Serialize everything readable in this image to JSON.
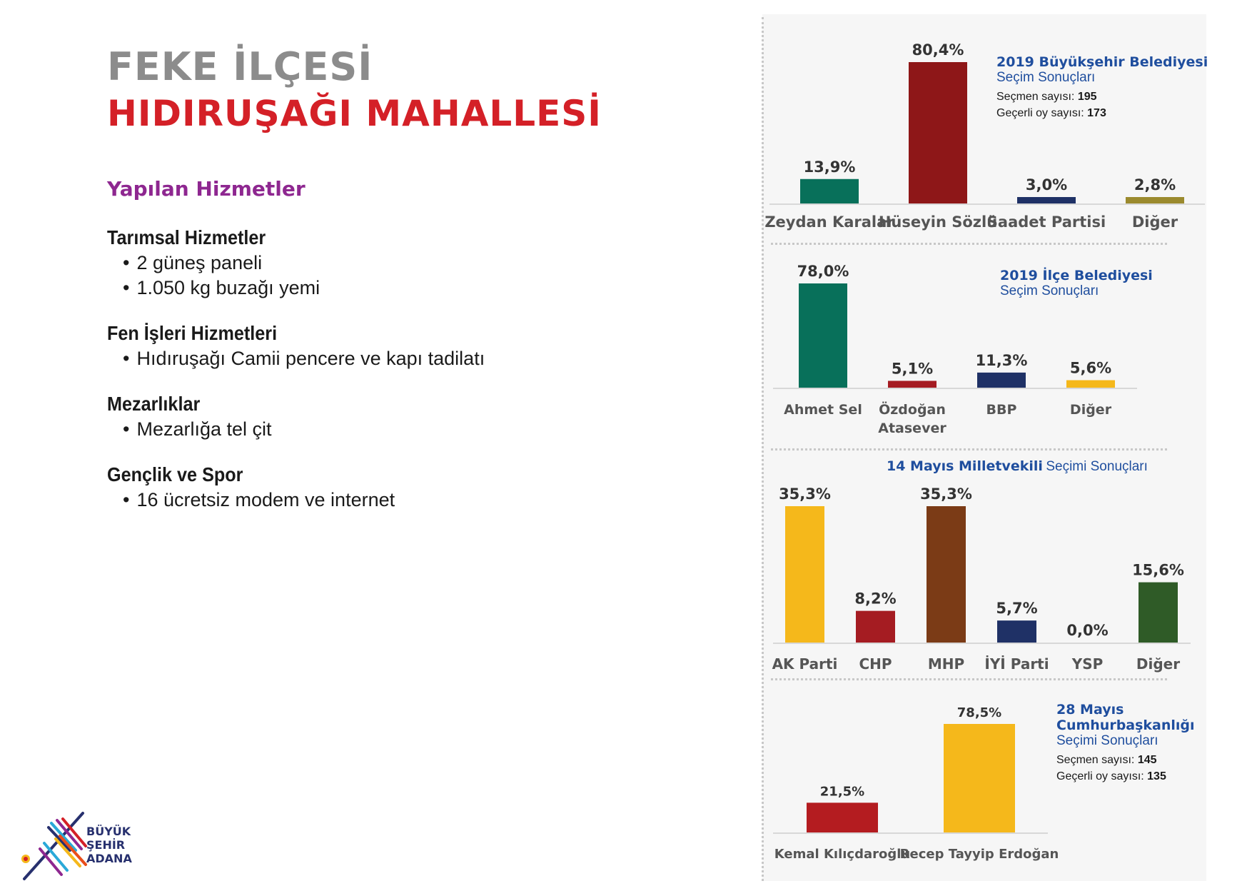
{
  "header": {
    "district": "FEKE İLÇESİ",
    "neighborhood": "HIDIRUŞAĞI MAHALLESİ"
  },
  "services": {
    "title": "Yapılan Hizmetler",
    "categories": [
      {
        "name": "Tarımsal Hizmetler",
        "items": [
          "2 güneş paneli",
          "1.050 kg buzağı yemi"
        ]
      },
      {
        "name": "Fen İşleri Hizmetleri",
        "items": [
          "Hıdıruşağı Camii pencere ve kapı tadilatı"
        ]
      },
      {
        "name": "Mezarlıklar",
        "items": [
          "Mezarlığa tel çit"
        ]
      },
      {
        "name": "Gençlik ve Spor",
        "items": [
          "16 ücretsiz modem ve internet"
        ]
      }
    ]
  },
  "logo": {
    "line1": "BÜYÜK",
    "line2": "ŞEHİR",
    "line3": "ADANA"
  },
  "chart_data": [
    {
      "type": "bar",
      "title": "2019 Büyükşehir Belediyesi",
      "subtitle": "Seçim Sonuçları",
      "voters_label": "Seçmen sayısı:",
      "voters": "195",
      "valid_label": "Geçerli oy sayısı:",
      "valid": "173",
      "categories": [
        "Zeydan Karalar",
        "Hüseyin Sözlü",
        "Saadet Partisi",
        "Diğer"
      ],
      "values": [
        13.9,
        80.4,
        3.0,
        2.8
      ],
      "labels": [
        "13,9%",
        "80,4%",
        "3,0%",
        "2,8%"
      ],
      "colors": [
        "#08705a",
        "#8e1718",
        "#1f3166",
        "#9b8a2e"
      ],
      "ylim": [
        0,
        80.4
      ]
    },
    {
      "type": "bar",
      "title": "2019 İlçe Belediyesi",
      "subtitle": "Seçim Sonuçları",
      "categories": [
        [
          "Ahmet Sel"
        ],
        [
          "Özdoğan",
          "Atasever"
        ],
        [
          "BBP"
        ],
        [
          "Diğer"
        ]
      ],
      "values": [
        78.0,
        5.1,
        11.3,
        5.6
      ],
      "labels": [
        "78,0%",
        "5,1%",
        "11,3%",
        "5,6%"
      ],
      "colors": [
        "#08705a",
        "#a51c22",
        "#1f3166",
        "#f5b81b"
      ],
      "ylim": [
        0,
        78.0
      ]
    },
    {
      "type": "bar",
      "title": "14 Mayıs Milletvekili",
      "subtitle": "Seçimi Sonuçları",
      "categories": [
        "AK Parti",
        "CHP",
        "MHP",
        "İYİ Parti",
        "YSP",
        "Diğer"
      ],
      "values": [
        35.3,
        8.2,
        35.3,
        5.7,
        0.0,
        15.6
      ],
      "labels": [
        "35,3%",
        "8,2%",
        "35,3%",
        "5,7%",
        "0,0%",
        "15,6%"
      ],
      "colors": [
        "#f5b81b",
        "#a51c22",
        "#7b3b16",
        "#1f3166",
        "#7a7a7a",
        "#2f5b27"
      ],
      "ylim": [
        0,
        35.3
      ]
    },
    {
      "type": "bar",
      "title": "28 Mayıs Cumhurbaşkanlığı",
      "subtitle": "Seçimi Sonuçları",
      "voters_label": "Seçmen sayısı:",
      "voters": "145",
      "valid_label": "Geçerli oy sayısı:",
      "valid": "135",
      "categories": [
        "Kemal Kılıçdaroğlu",
        "Recep Tayyip Erdoğan"
      ],
      "values": [
        21.5,
        78.5
      ],
      "labels": [
        "21,5%",
        "78,5%"
      ],
      "colors": [
        "#b41c20",
        "#f5b81b"
      ],
      "ylim": [
        0,
        78.5
      ]
    }
  ]
}
